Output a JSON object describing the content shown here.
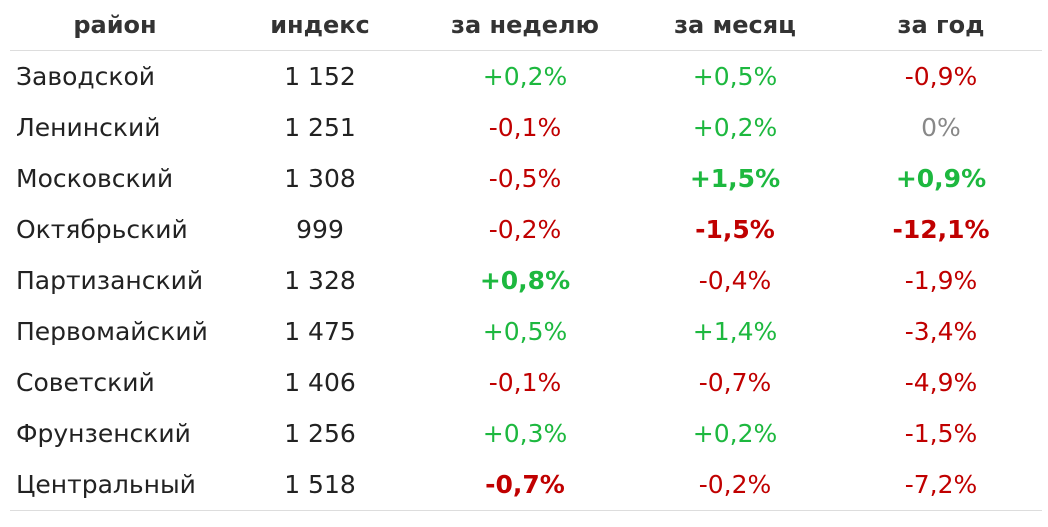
{
  "headers": [
    "район",
    "индекс",
    "за неделю",
    "за месяц",
    "за год"
  ],
  "rows": [
    {
      "district": "Заводской",
      "index": "1 152",
      "week": "+0,2%",
      "month": "+0,5%",
      "year": "-0,9%"
    },
    {
      "district": "Ленинский",
      "index": "1 251",
      "week": "-0,1%",
      "month": "+0,2%",
      "year": "0%"
    },
    {
      "district": "Московский",
      "index": "1 308",
      "week": "-0,5%",
      "month": "+1,5%",
      "year": "+0,9%"
    },
    {
      "district": "Октябрьский",
      "index": "999",
      "week": "-0,2%",
      "month": "-1,5%",
      "year": "-12,1%"
    },
    {
      "district": "Партизанский",
      "index": "1 328",
      "week": "+0,8%",
      "month": "-0,4%",
      "year": "-1,9%"
    },
    {
      "district": "Первомайский",
      "index": "1 475",
      "week": "+0,5%",
      "month": "+1,4%",
      "year": "-3,4%"
    },
    {
      "district": "Советский",
      "index": "1 406",
      "week": "-0,1%",
      "month": "-0,7%",
      "year": "-4,9%"
    },
    {
      "district": "Фрунзенский",
      "index": "1 256",
      "week": "+0,3%",
      "month": "+0,2%",
      "year": "-1,5%"
    },
    {
      "district": "Центральный",
      "index": "1 518",
      "week": "-0,7%",
      "month": "-0,2%",
      "year": "-7,2%"
    }
  ],
  "highlighted": {
    "week": [
      "Партизанский",
      "Центральный"
    ],
    "month": [
      "Московский",
      "Октябрьский"
    ],
    "year": [
      "Московский",
      "Октябрьский"
    ]
  },
  "colors": {
    "positive": "#1db83f",
    "negative": "#c00000",
    "zero": "#888888"
  }
}
